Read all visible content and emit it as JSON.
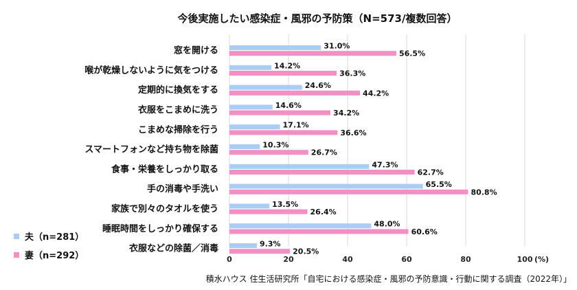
{
  "chart_data": {
    "type": "bar",
    "orientation": "horizontal",
    "title": "今後実施したい感染症・風邪の予防策（N=573/複数回答）",
    "categories": [
      "窓を開ける",
      "喉が乾燥しないように気をつける",
      "定期的に換気をする",
      "衣服をこまめに洗う",
      "こまめな掃除を行う",
      "スマートフォンなど持ち物を除菌",
      "食事・栄養をしっかり取る",
      "手の消毒や手洗い",
      "家族で別々のタオルを使う",
      "睡眠時間をしっかり確保する",
      "衣服などの除菌／消毒"
    ],
    "series": [
      {
        "name": "夫（n=281）",
        "color": "#a9cdf5",
        "values": [
          31.0,
          14.2,
          24.6,
          14.6,
          17.1,
          10.3,
          47.3,
          65.5,
          13.5,
          48.0,
          9.3
        ]
      },
      {
        "name": "妻（n=292）",
        "color": "#f28fc3",
        "values": [
          56.5,
          36.3,
          44.2,
          34.2,
          36.6,
          26.7,
          62.7,
          80.8,
          26.4,
          60.6,
          20.5
        ]
      }
    ],
    "xlim": [
      0,
      100
    ],
    "xticks": [
      0,
      20,
      40,
      60,
      80,
      100
    ],
    "xtick_labels": [
      "0",
      "20",
      "40",
      "60",
      "80",
      "100"
    ],
    "xunit": "(%)",
    "value_suffix": "%",
    "grid": "vertical",
    "legend_position": "bottom-left",
    "source": "積水ハウス 住生活研究所「自宅における感染症・風邪の予防意識・行動に関する調査（2022年）」"
  }
}
